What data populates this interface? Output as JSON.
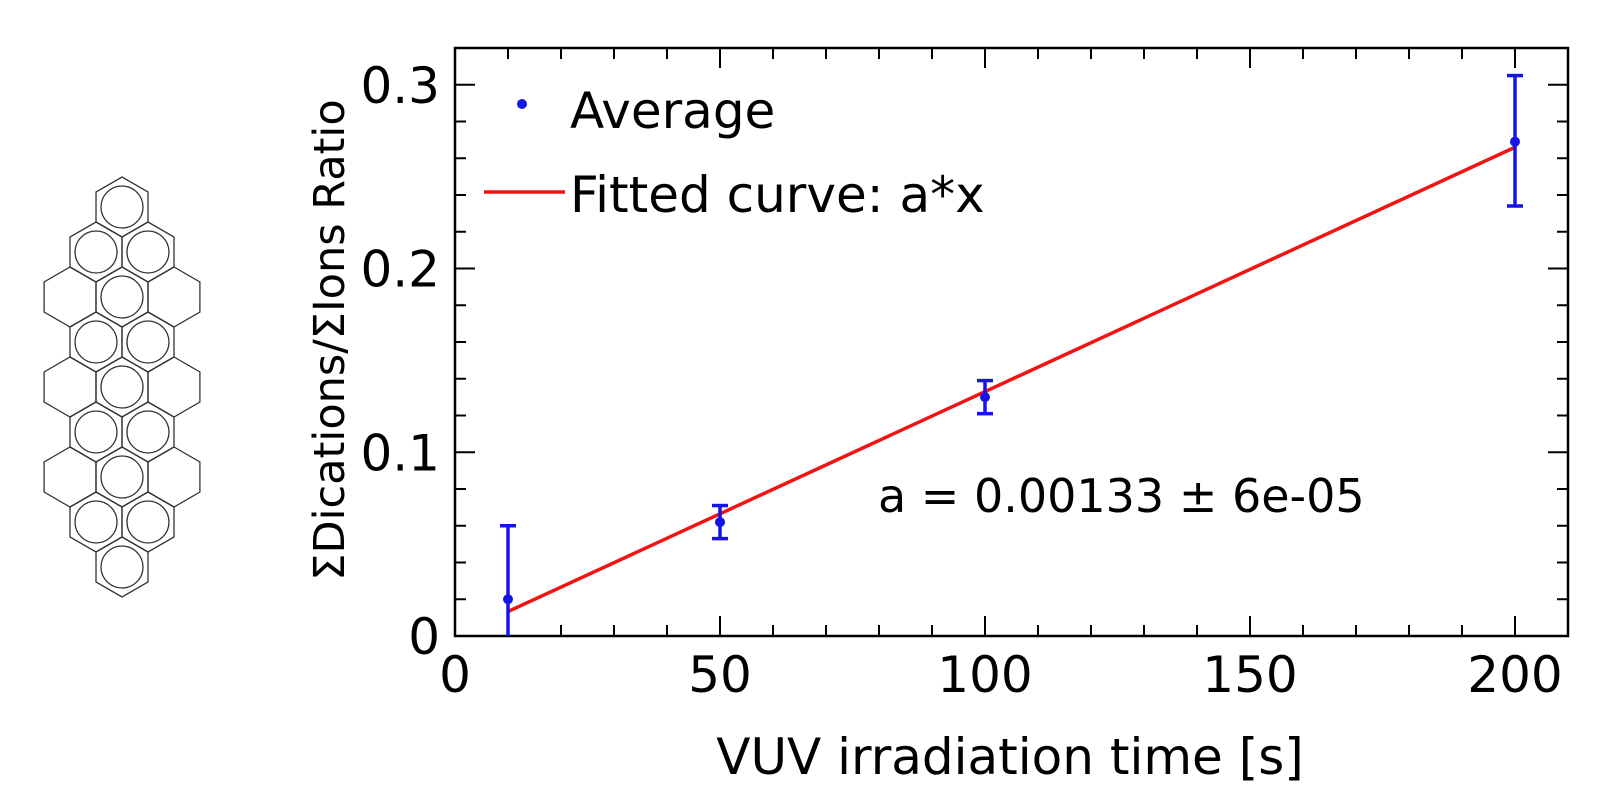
{
  "chart_data": {
    "type": "scatter",
    "xlabel": "VUV irradiation time [s]",
    "ylabel": "ΣDications/ΣIons Ratio",
    "xlim": [
      0,
      210
    ],
    "ylim": [
      0,
      0.32
    ],
    "x_ticks": [
      0,
      50,
      100,
      150,
      200
    ],
    "y_ticks": [
      0,
      0.1,
      0.2,
      0.3
    ],
    "x_tick_labels": [
      "0",
      "50",
      "100",
      "150",
      "200"
    ],
    "y_tick_labels": [
      "0",
      "0.1",
      "0.2",
      "0.3"
    ],
    "grid": false,
    "legend_position": "top-left",
    "series": [
      {
        "name": "Average",
        "kind": "points_with_errorbars",
        "color": "#1414e6",
        "x": [
          10,
          50,
          100,
          200
        ],
        "y": [
          0.02,
          0.062,
          0.13,
          0.269
        ],
        "err_low": [
          0.02,
          0.009,
          0.009,
          0.035
        ],
        "err_high": [
          0.04,
          0.009,
          0.009,
          0.036
        ]
      },
      {
        "name": "Fitted curve: a*x",
        "kind": "line",
        "color": "#f01414",
        "slope": 0.00133,
        "x": [
          10,
          200
        ],
        "y": [
          0.0133,
          0.266
        ]
      }
    ],
    "annotation": "a = 0.00133 ± 6e-05"
  },
  "molecule_icon": "coronene-like-polycyclic-aromatic-hydrocarbon"
}
